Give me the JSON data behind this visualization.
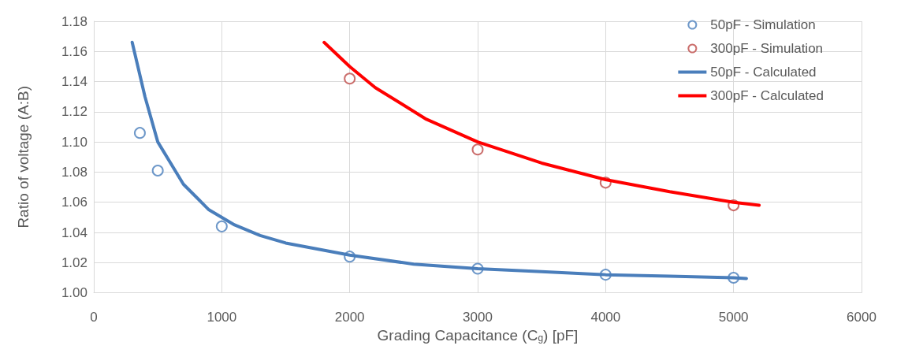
{
  "chart_data": {
    "type": "scatter",
    "xlabel": "Grading Capacitance (C$_{g}$) [pF]",
    "ylabel": "Ratio of voltage (A:B)",
    "xlim": [
      0,
      6000
    ],
    "xticks": [
      0,
      1000,
      2000,
      3000,
      4000,
      5000,
      6000
    ],
    "ylim": [
      1.0,
      1.18
    ],
    "yticks": [
      {
        "value": 1.0,
        "label": "1.00"
      },
      {
        "value": 1.02,
        "label": "1.02"
      },
      {
        "value": 1.04,
        "label": "1.04"
      },
      {
        "value": 1.06,
        "label": "1.06"
      },
      {
        "value": 1.08,
        "label": "1.08"
      },
      {
        "value": 1.1,
        "label": "1.10"
      },
      {
        "value": 1.12,
        "label": "1.12"
      },
      {
        "value": 1.14,
        "label": "1.14"
      },
      {
        "value": 1.16,
        "label": "1.16"
      },
      {
        "value": 1.18,
        "label": "1.18"
      }
    ],
    "grid": true,
    "legend": "top right",
    "series": [
      {
        "name": "50pF - Simulation",
        "marker": "circle",
        "color": "#4a7ebb",
        "x": [
          360,
          500,
          1000,
          2000,
          3000,
          4000,
          5000
        ],
        "values": [
          1.106,
          1.081,
          1.044,
          1.024,
          1.016,
          1.012,
          1.01
        ]
      },
      {
        "name": "300pF - Simulation",
        "marker": "circle",
        "color": "#be4b48",
        "x": [
          2000,
          3000,
          4000,
          5000
        ],
        "values": [
          1.142,
          1.095,
          1.073,
          1.058
        ]
      },
      {
        "name": "50pF - Calculated",
        "type": "line",
        "marker": "none",
        "line_style": "solid",
        "color": "#4a7ebb",
        "x": [
          300,
          400,
          500,
          700,
          900,
          1100,
          1300,
          1500,
          2000,
          2500,
          3000,
          3500,
          4000,
          4500,
          5000,
          5100
        ],
        "values": [
          1.166,
          1.13,
          1.1,
          1.072,
          1.055,
          1.045,
          1.038,
          1.033,
          1.025,
          1.019,
          1.016,
          1.014,
          1.012,
          1.011,
          1.01,
          1.0095
        ]
      },
      {
        "name": "300pF - Calculated",
        "type": "line",
        "marker": "none",
        "line_style": "solid",
        "color": "#ff0000",
        "x": [
          1800,
          2000,
          2200,
          2600,
          3000,
          3500,
          4000,
          4500,
          5000,
          5200
        ],
        "values": [
          1.166,
          1.15,
          1.136,
          1.115,
          1.1,
          1.086,
          1.075,
          1.067,
          1.06,
          1.058
        ]
      }
    ]
  }
}
